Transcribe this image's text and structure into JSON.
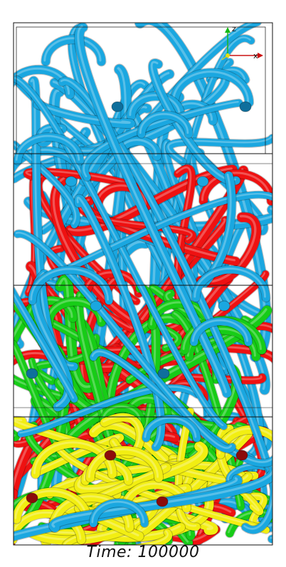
{
  "caption": {
    "label": "Time:",
    "value": "100000"
  },
  "axes": {
    "z_label": "z",
    "x_label": "x"
  },
  "network_colors": {
    "blue": "#1aa7e0",
    "blue_dark": "#0f6f9c",
    "red": "#ee1111",
    "red_dark": "#8c0b0b",
    "green": "#17cc17",
    "yellow": "#f2ee12"
  },
  "phases": [
    "blue",
    "red",
    "green",
    "yellow"
  ]
}
